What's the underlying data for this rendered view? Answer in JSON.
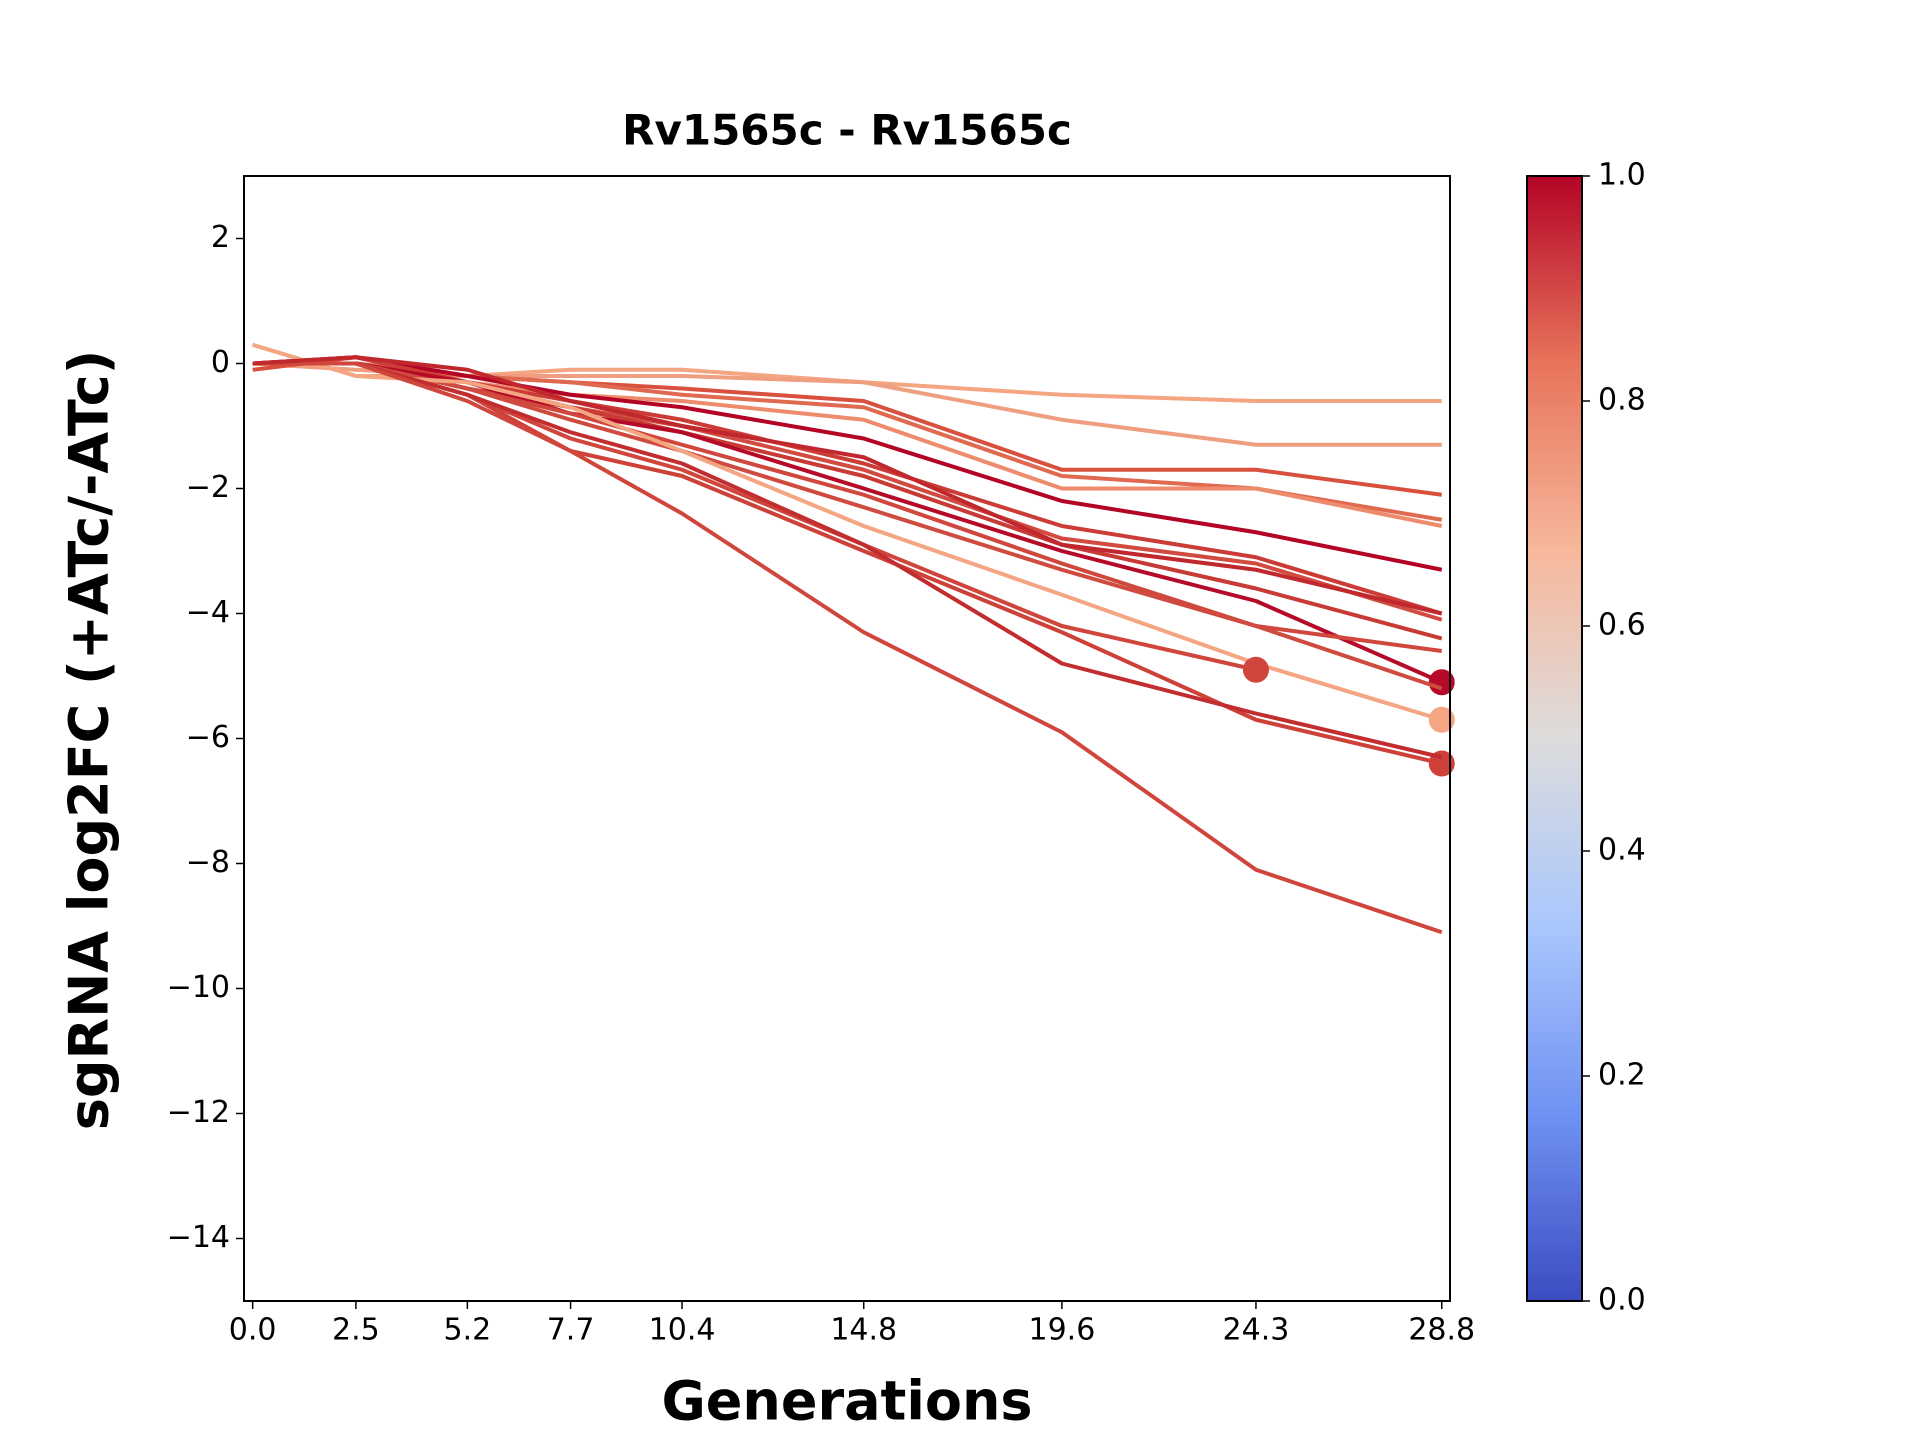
{
  "chart_data": {
    "type": "line",
    "title": "Rv1565c - Rv1565c",
    "xlabel": "Generations",
    "ylabel": "sgRNA log2FC (+ATc/-ATc)",
    "x": [
      0.0,
      2.5,
      5.2,
      7.7,
      10.4,
      14.8,
      19.6,
      24.3,
      28.8
    ],
    "xlim": [
      -0.21,
      29.0
    ],
    "xticks": [
      {
        "value": 0,
        "label": "0.0"
      },
      2.5,
      5.2,
      7.7,
      10.4,
      14.8,
      19.6,
      24.3,
      28.8
    ],
    "ylim": [
      -15,
      3
    ],
    "yticks": [
      {
        "value": -14,
        "label": "−14"
      },
      {
        "value": -12,
        "label": "−12"
      },
      {
        "value": -10,
        "label": "−10"
      },
      {
        "value": -8,
        "label": "−8"
      },
      {
        "value": -6,
        "label": "−6"
      },
      {
        "value": -4,
        "label": "−4"
      },
      {
        "value": -2,
        "label": "−2"
      },
      0,
      2
    ],
    "series": [
      {
        "color": "#f4a582",
        "values": [
          0.3,
          -0.2,
          -0.2,
          -0.1,
          -0.1,
          -0.3,
          -0.5,
          -0.6,
          -0.6
        ]
      },
      {
        "color": "#f09e80",
        "values": [
          0,
          -0.1,
          -0.2,
          -0.2,
          -0.2,
          -0.3,
          -0.9,
          -1.3,
          -1.3
        ]
      },
      {
        "color": "#d9503f",
        "values": [
          -0.1,
          0.1,
          -0.2,
          -0.3,
          -0.4,
          -0.6,
          -1.7,
          -1.7,
          -2.1
        ]
      },
      {
        "color": "#e06a50",
        "values": [
          0,
          0,
          -0.2,
          -0.3,
          -0.5,
          -0.7,
          -1.8,
          -2.0,
          -2.5
        ]
      },
      {
        "color": "#ee8b6c",
        "values": [
          0,
          0,
          -0.3,
          -0.5,
          -0.6,
          -0.9,
          -2.0,
          -2.0,
          -2.6
        ]
      },
      {
        "color": "#b40426",
        "values": [
          0,
          0.1,
          -0.2,
          -0.5,
          -0.7,
          -1.2,
          -2.2,
          -2.7,
          -3.3
        ]
      },
      {
        "color": "#cc3c36",
        "values": [
          0,
          0.1,
          -0.3,
          -0.6,
          -0.9,
          -1.6,
          -2.6,
          -3.1,
          -4.0
        ]
      },
      {
        "color": "#d24b40",
        "values": [
          0,
          0,
          -0.3,
          -0.7,
          -1.0,
          -1.7,
          -2.8,
          -3.2,
          -4.1
        ]
      },
      {
        "color": "#c83a34",
        "values": [
          0,
          0,
          -0.4,
          -0.7,
          -1.1,
          -1.8,
          -2.9,
          -3.6,
          -4.4
        ]
      },
      {
        "color": "#b50b28",
        "values": [
          0,
          0,
          -0.3,
          -0.8,
          -1.1,
          -2.0,
          -3.0,
          -3.8,
          -5.1
        ],
        "end_marker": true
      },
      {
        "color": "#d0473d",
        "values": [
          0,
          0,
          -0.4,
          -0.8,
          -1.3,
          -2.1,
          -3.2,
          -4.2,
          -4.6
        ]
      },
      {
        "color": "#cf4a3f",
        "values": [
          0,
          0,
          -0.4,
          -0.9,
          -1.4,
          -2.3,
          -3.3,
          -4.2,
          -5.2
        ]
      },
      {
        "color": "#f4a582",
        "values": [
          0.3,
          -0.2,
          -0.3,
          -0.7,
          -1.4,
          -2.6,
          -3.7,
          -4.8,
          -5.7
        ],
        "end_marker": true
      },
      {
        "color": "#d0463c",
        "values": [
          0,
          0,
          -0.5,
          -1.2,
          -1.7,
          -2.9,
          -4.2,
          -4.9,
          null
        ],
        "end_marker": true
      },
      {
        "color": "#cd4139",
        "values": [
          0,
          0,
          -0.5,
          -1.4,
          -1.8,
          -3.0,
          -4.3,
          -5.7,
          -6.4
        ],
        "end_marker": true
      },
      {
        "color": "#c22e30",
        "values": [
          0,
          0,
          -0.5,
          -1.1,
          -1.6,
          -2.9,
          -4.8,
          -5.6,
          -6.3
        ]
      },
      {
        "color": "#d0463c",
        "values": [
          0,
          0,
          -0.6,
          -1.4,
          -2.4,
          -4.3,
          -5.9,
          -8.1,
          -9.1
        ]
      },
      {
        "color": "#c0282e",
        "values": [
          0,
          0.1,
          -0.1,
          -0.6,
          -1.0,
          -1.5,
          -2.9,
          -3.3,
          -4.0
        ]
      }
    ],
    "colorbar": {
      "lim": [
        0,
        1
      ],
      "ticks": [
        {
          "value": 0,
          "label": "0.0"
        },
        0.2,
        0.4,
        0.6,
        0.8,
        {
          "value": 1,
          "label": "1.0"
        }
      ],
      "colors": [
        "#3b4cc0",
        "#6f92f3",
        "#aac7fd",
        "#dddcdc",
        "#f7b89c",
        "#e7745b",
        "#b40426"
      ]
    }
  }
}
